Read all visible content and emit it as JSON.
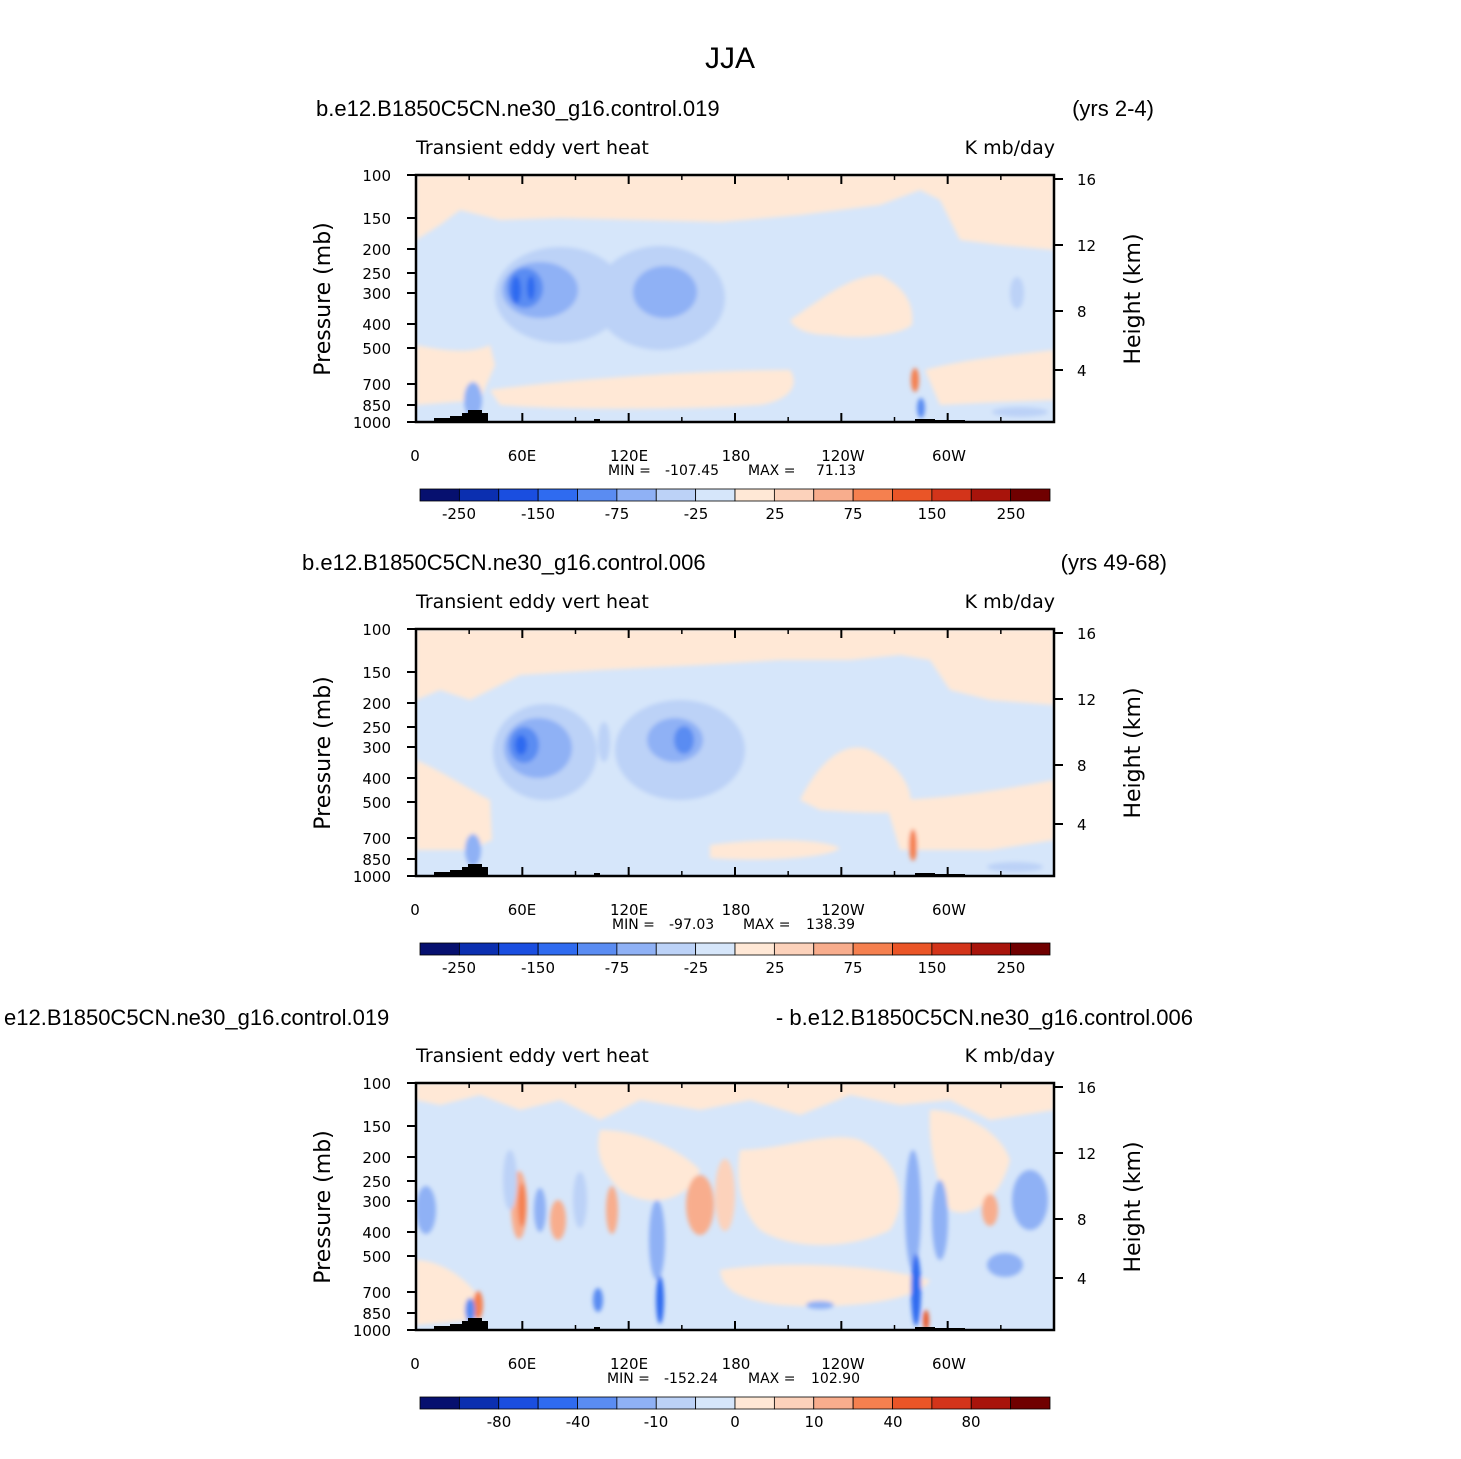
{
  "figure_title": "JJA",
  "colors": {
    "seq12": [
      "#06106f",
      "#0b2fb0",
      "#1a4ee0",
      "#2f6bf0",
      "#5a8cf2",
      "#8fb1f5",
      "#bcd2f7",
      "#d6e6fa",
      "#ffe8d6",
      "#fcd2bb",
      "#f8ad8d",
      "#f5804f",
      "#ea5527",
      "#d3341a",
      "#a8140b",
      "#700000"
    ],
    "land": "#000000"
  },
  "chart_data": [
    {
      "type": "heatmap",
      "case_title": "b.e12.B1850C5CN.ne30_g16.control.019",
      "years": "(yrs 2-4)",
      "variable": "Transient eddy vert heat",
      "units": "K mb/day",
      "ylabel": "Pressure (mb)",
      "ylabel_right": "Height (km)",
      "xticks": [
        "0",
        "60E",
        "120E",
        "180",
        "120W",
        "60W"
      ],
      "yticks": [
        "100",
        "150",
        "200",
        "250",
        "300",
        "400",
        "500",
        "700",
        "850",
        "1000"
      ],
      "right_ticks": [
        "16",
        "12",
        "8",
        "4"
      ],
      "min_label": "MIN =",
      "min_value": "-107.45",
      "max_label": "MAX =",
      "max_value": "71.13",
      "colorbar_labels": [
        "-250",
        "-150",
        "-75",
        "-25",
        "25",
        "75",
        "150",
        "250"
      ],
      "ylim": [
        1000,
        100
      ],
      "xlim": [
        0,
        360
      ]
    },
    {
      "type": "heatmap",
      "case_title": "b.e12.B1850C5CN.ne30_g16.control.006",
      "years": "(yrs 49-68)",
      "variable": "Transient eddy vert heat",
      "units": "K mb/day",
      "ylabel": "Pressure (mb)",
      "ylabel_right": "Height (km)",
      "xticks": [
        "0",
        "60E",
        "120E",
        "180",
        "120W",
        "60W"
      ],
      "yticks": [
        "100",
        "150",
        "200",
        "250",
        "300",
        "400",
        "500",
        "700",
        "850",
        "1000"
      ],
      "right_ticks": [
        "16",
        "12",
        "8",
        "4"
      ],
      "min_label": "MIN =",
      "min_value": "-97.03",
      "max_label": "MAX =",
      "max_value": "138.39",
      "colorbar_labels": [
        "-250",
        "-150",
        "-75",
        "-25",
        "25",
        "75",
        "150",
        "250"
      ],
      "ylim": [
        1000,
        100
      ],
      "xlim": [
        0,
        360
      ]
    },
    {
      "type": "heatmap",
      "case_title": "e12.B1850C5CN.ne30_g16.control.019",
      "years": "- b.e12.B1850C5CN.ne30_g16.control.006",
      "variable": "Transient eddy vert heat",
      "units": "K mb/day",
      "ylabel": "Pressure (mb)",
      "ylabel_right": "Height (km)",
      "xticks": [
        "0",
        "60E",
        "120E",
        "180",
        "120W",
        "60W"
      ],
      "yticks": [
        "100",
        "150",
        "200",
        "250",
        "300",
        "400",
        "500",
        "700",
        "850",
        "1000"
      ],
      "right_ticks": [
        "16",
        "12",
        "8",
        "4"
      ],
      "min_label": "MIN =",
      "min_value": "-152.24",
      "max_label": "MAX =",
      "max_value": "102.90",
      "colorbar_labels": [
        "-80",
        "-40",
        "-10",
        "0",
        "10",
        "40",
        "80"
      ],
      "ylim": [
        1000,
        100
      ],
      "xlim": [
        0,
        360
      ]
    }
  ]
}
